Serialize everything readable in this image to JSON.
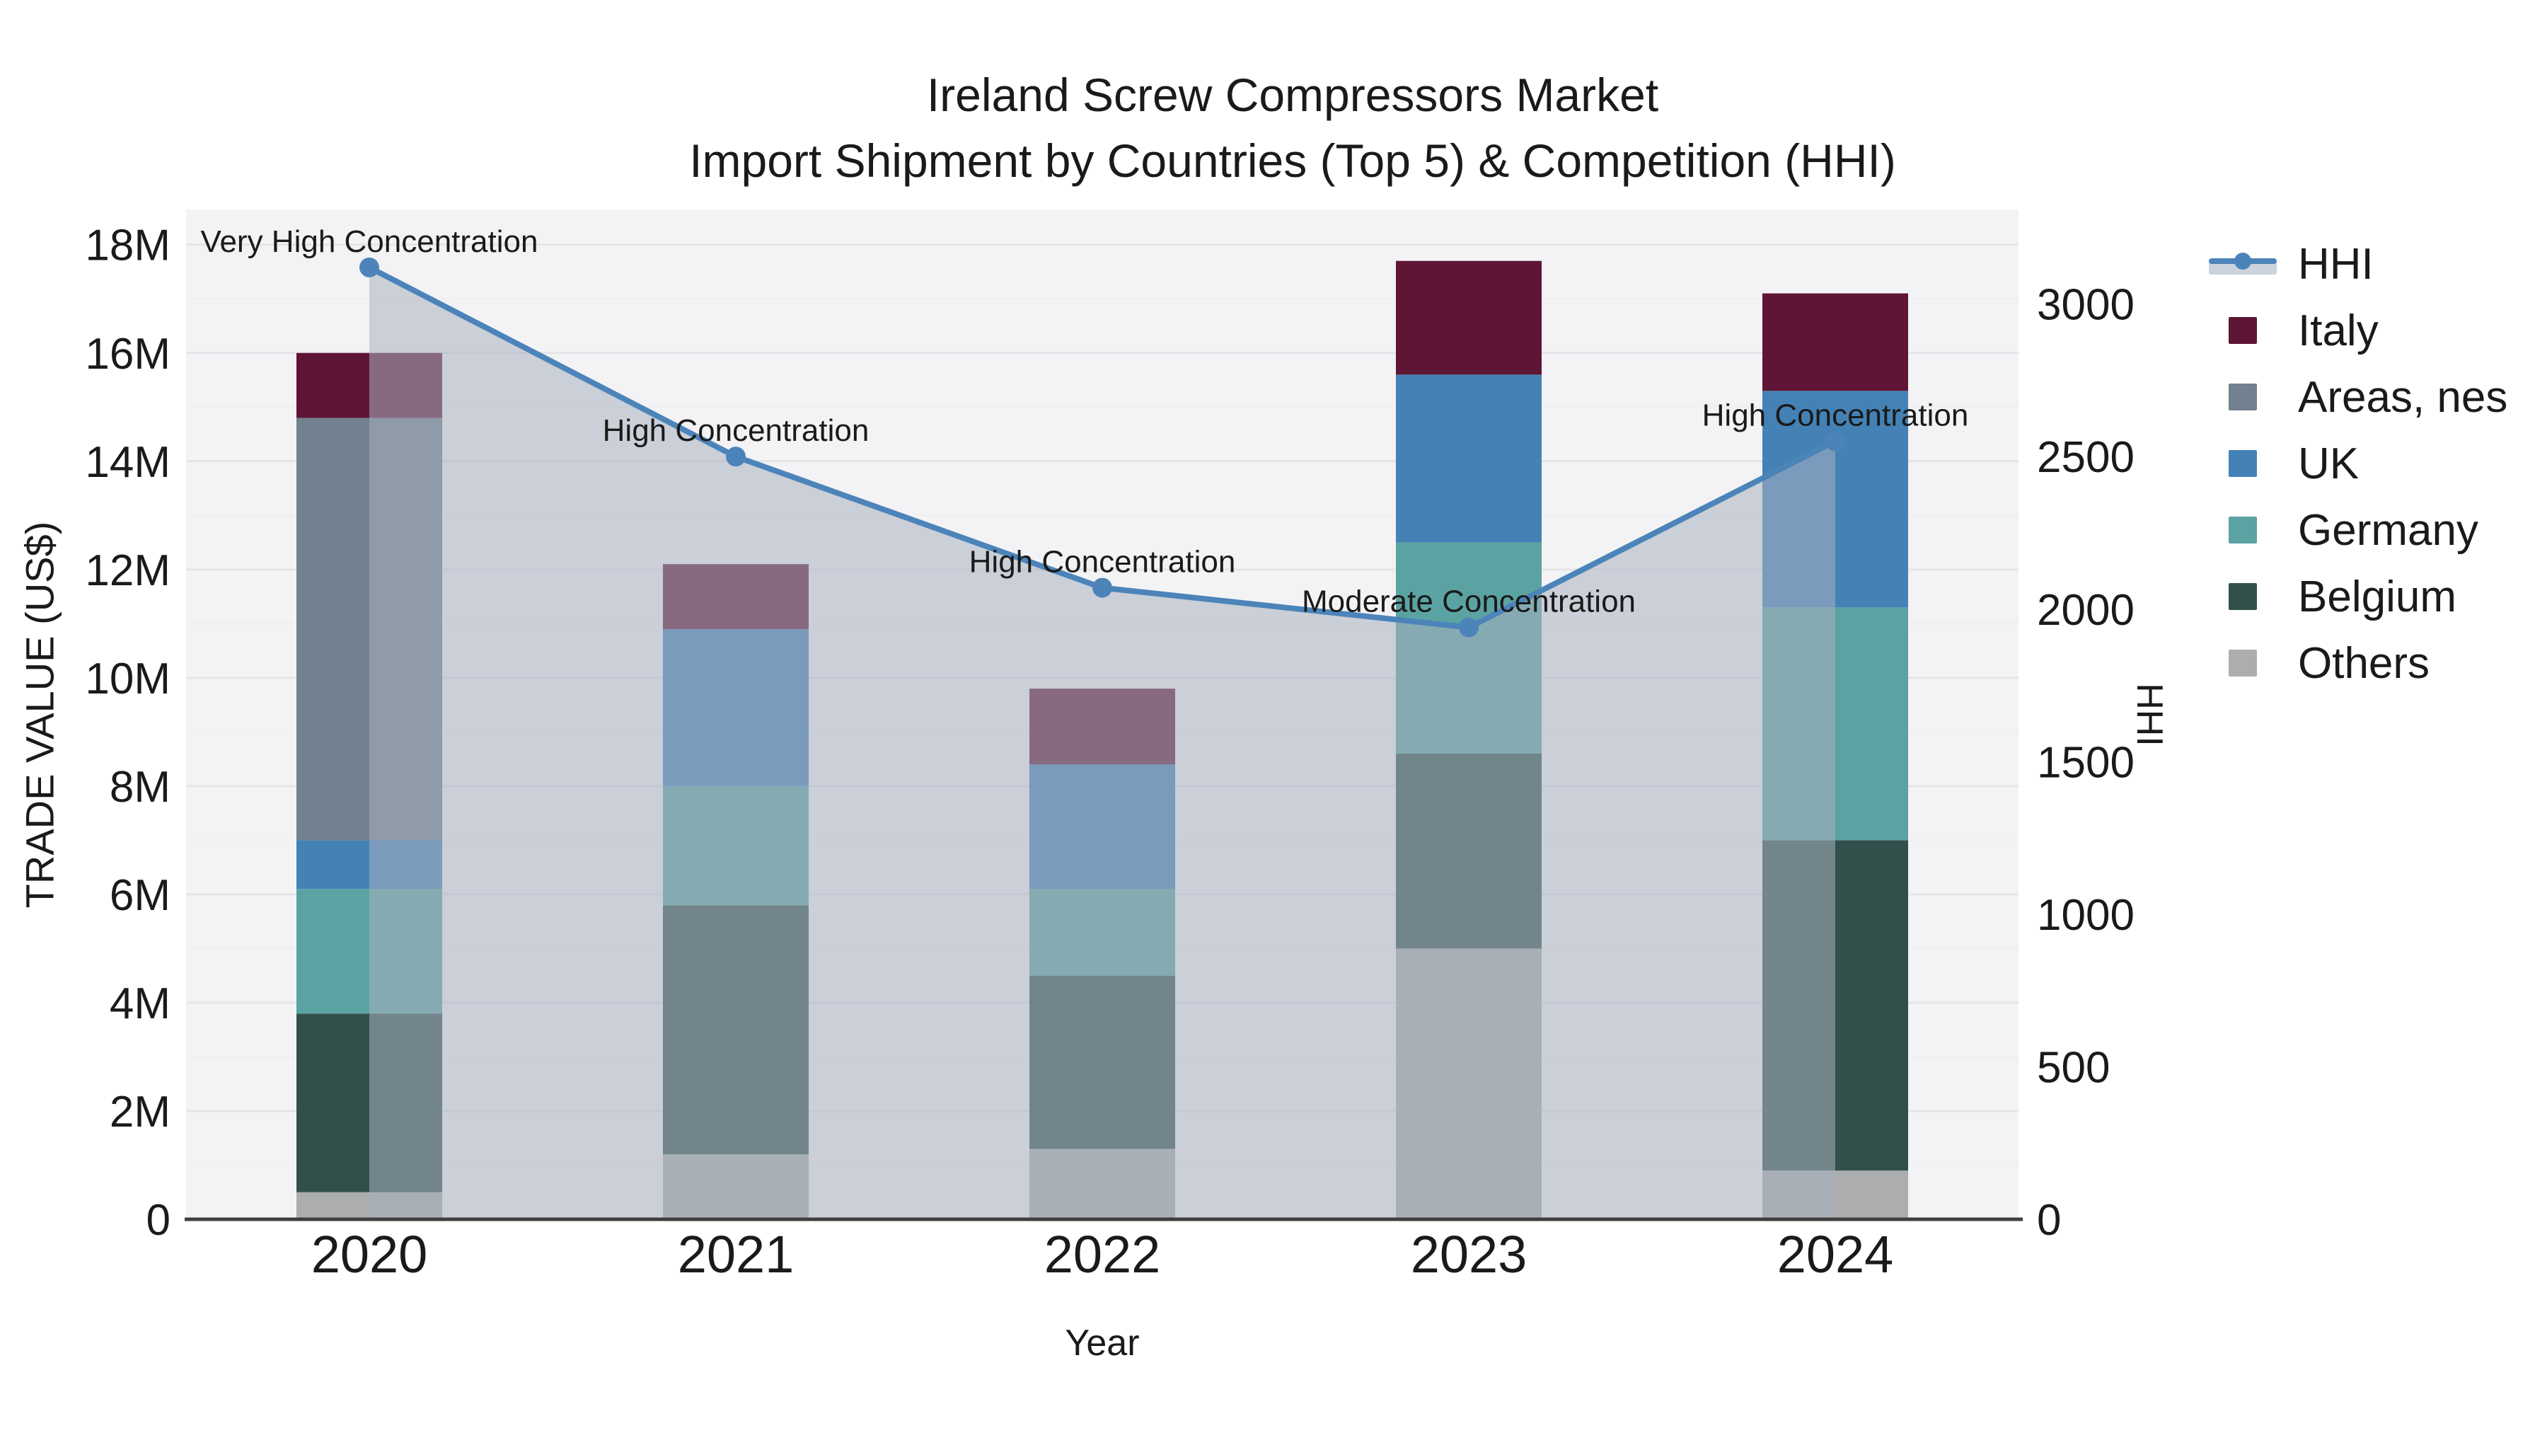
{
  "title": {
    "line1": "Ireland Screw Compressors Market",
    "line2": "Import Shipment by Countries (Top 5) & Competition (HHI)"
  },
  "axes": {
    "x_title": "Year",
    "y_left_title": "TRADE VALUE (US$)",
    "y_right_title": "HHI",
    "y_left_ticks": [
      "0",
      "2M",
      "4M",
      "6M",
      "8M",
      "10M",
      "12M",
      "14M",
      "16M",
      "18M"
    ],
    "y_right_ticks": [
      "0",
      "500",
      "1000",
      "1500",
      "2000",
      "2500",
      "3000"
    ]
  },
  "colors": {
    "plot_bg": "#f3f3f5",
    "grid_major": "#e5e5e8",
    "grid_minor": "#efeff1",
    "axis_line": "#3f3f3f",
    "text": "#1a1a1a",
    "hhi_line": "#4c84ba",
    "hhi_fill": "rgba(168,176,192,0.55)",
    "legend_band": "#cdd3dd"
  },
  "chart_data": {
    "type": "combo",
    "subtypes": [
      "stacked-bar",
      "line-with-area"
    ],
    "title": "Ireland Screw Compressors Market — Import Shipment by Countries (Top 5) & Competition (HHI)",
    "categories": [
      "2020",
      "2021",
      "2022",
      "2023",
      "2024"
    ],
    "bar_unit": "US$ million",
    "xlabel": "Year",
    "ylabel_left": "TRADE VALUE (US$)",
    "ylabel_right": "HHI",
    "y_left": {
      "max_at_top": 18.65,
      "tick_step_m": 2,
      "tick_max_m": 18
    },
    "y_right": {
      "max_at_top": 3310,
      "tick_step": 500,
      "tick_max": 3000
    },
    "series": [
      {
        "name": "Others",
        "color": "#acadae",
        "values": [
          0.5,
          1.2,
          1.3,
          5.0,
          0.9
        ]
      },
      {
        "name": "Belgium",
        "color": "#31504c",
        "values": [
          3.3,
          4.6,
          3.2,
          3.6,
          6.1
        ]
      },
      {
        "name": "Germany",
        "color": "#5ba3a2",
        "values": [
          2.3,
          2.2,
          1.6,
          3.9,
          4.3
        ]
      },
      {
        "name": "UK",
        "color": "#4482b6",
        "values": [
          0.9,
          2.9,
          2.3,
          3.1,
          4.0
        ]
      },
      {
        "name": "Areas, nes",
        "color": "#72808f",
        "values": [
          7.8,
          0.0,
          0.0,
          0.0,
          0.0
        ]
      },
      {
        "name": "Italy",
        "color": "#5f1535",
        "values": [
          1.2,
          1.2,
          1.4,
          2.1,
          1.8
        ]
      }
    ],
    "bar_totals": [
      16.0,
      12.1,
      9.8,
      17.7,
      17.1
    ],
    "line_series": {
      "name": "HHI",
      "axis": "right",
      "values": [
        3120,
        2500,
        2070,
        1940,
        2550
      ]
    },
    "annotations": [
      {
        "category": "2020",
        "text": "Very High Concentration"
      },
      {
        "category": "2021",
        "text": "High Concentration"
      },
      {
        "category": "2022",
        "text": "High Concentration"
      },
      {
        "category": "2023",
        "text": "Moderate Concentration"
      },
      {
        "category": "2024",
        "text": "High Concentration"
      }
    ],
    "legend_position": "right"
  },
  "legend": {
    "items": [
      {
        "label": "HHI",
        "kind": "line-area",
        "color": "#4c84ba"
      },
      {
        "label": "Italy",
        "kind": "swatch",
        "color": "#5f1535"
      },
      {
        "label": "Areas, nes",
        "kind": "swatch",
        "color": "#72808f"
      },
      {
        "label": "UK",
        "kind": "swatch",
        "color": "#4482b6"
      },
      {
        "label": "Germany",
        "kind": "swatch",
        "color": "#5ba3a2"
      },
      {
        "label": "Belgium",
        "kind": "swatch",
        "color": "#31504c"
      },
      {
        "label": "Others",
        "kind": "swatch",
        "color": "#acadae"
      }
    ]
  }
}
